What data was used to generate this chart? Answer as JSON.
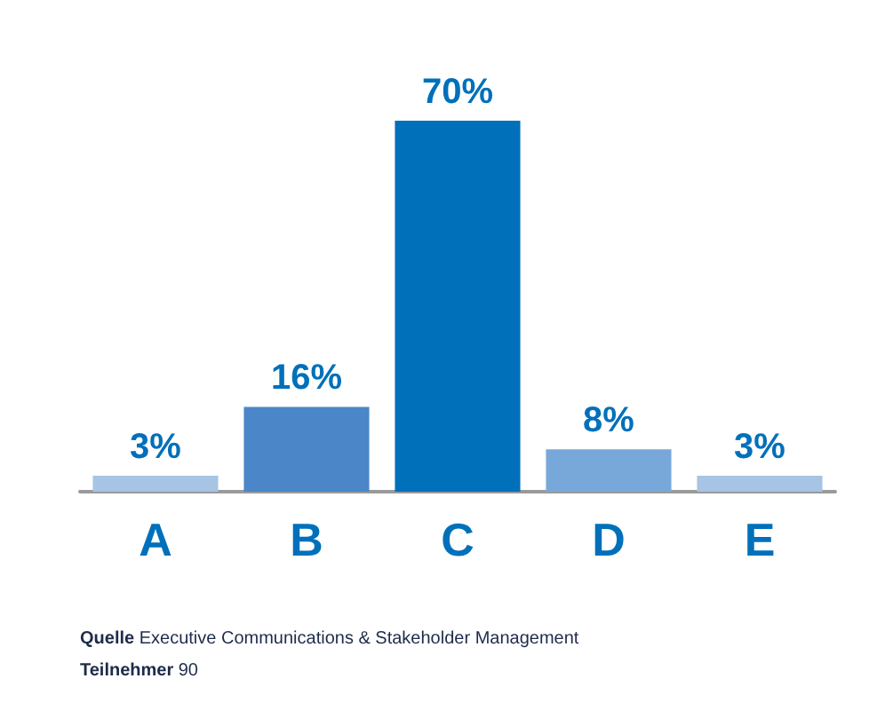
{
  "chart_data": {
    "type": "bar",
    "categories": [
      "A",
      "B",
      "C",
      "D",
      "E"
    ],
    "values": [
      3,
      16,
      70,
      8,
      3
    ],
    "colors": [
      "#a7c4e4",
      "#4a86c8",
      "#0070ba",
      "#78a8d9",
      "#a7c4e4"
    ],
    "value_labels": [
      "3%",
      "16%",
      "70%",
      "8%",
      "3%"
    ],
    "annotations": [
      "Quelle Executive Communications & Stakeholder Management",
      "Teilnehmer 90"
    ]
  }
}
